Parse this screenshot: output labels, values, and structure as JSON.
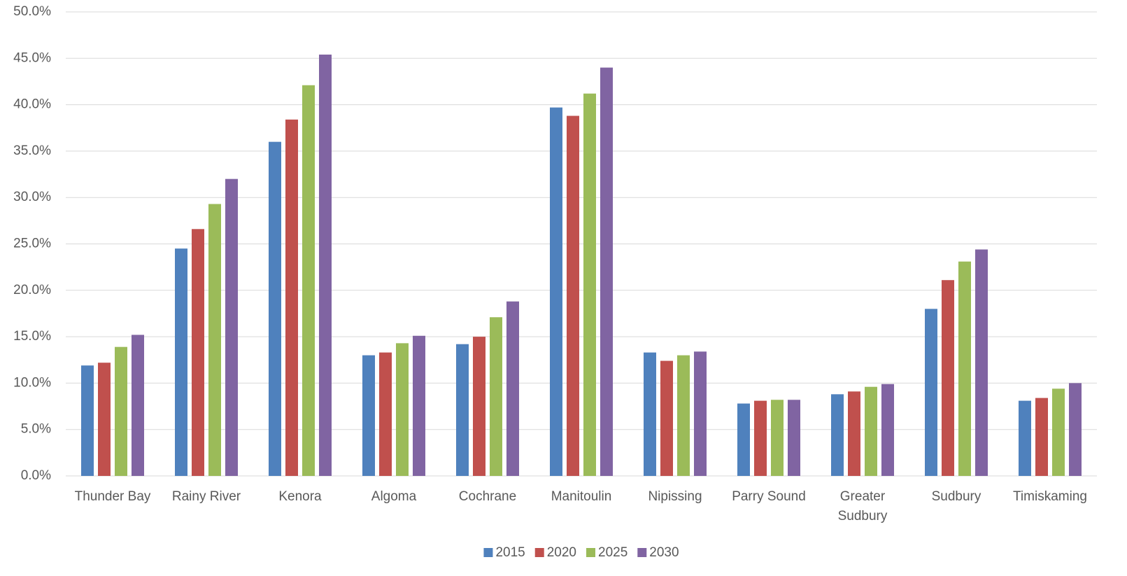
{
  "chart_data": {
    "type": "bar",
    "categories": [
      "Thunder Bay",
      "Rainy River",
      "Kenora",
      "Algoma",
      "Cochrane",
      "Manitoulin",
      "Nipissing",
      "Parry Sound",
      "Greater Sudbury",
      "Sudbury",
      "Timiskaming"
    ],
    "series": [
      {
        "name": "2015",
        "color": "#4f81bd",
        "values": [
          11.9,
          24.5,
          36.0,
          13.0,
          14.2,
          39.7,
          13.3,
          7.8,
          8.8,
          18.0,
          8.1
        ]
      },
      {
        "name": "2020",
        "color": "#c0504d",
        "values": [
          12.2,
          26.6,
          38.4,
          13.3,
          15.0,
          38.8,
          12.4,
          8.1,
          9.1,
          21.1,
          8.4
        ]
      },
      {
        "name": "2025",
        "color": "#9bbb59",
        "values": [
          13.9,
          29.3,
          42.1,
          14.3,
          17.1,
          41.2,
          13.0,
          8.2,
          9.6,
          23.1,
          9.4
        ]
      },
      {
        "name": "2030",
        "color": "#8064a2",
        "values": [
          15.2,
          32.0,
          45.4,
          15.1,
          18.8,
          44.0,
          13.4,
          8.2,
          9.9,
          24.4,
          10.0
        ]
      }
    ],
    "ylim": [
      0,
      50
    ],
    "yticks": [
      {
        "value": 0,
        "label": "0.0%"
      },
      {
        "value": 5,
        "label": "5.0%"
      },
      {
        "value": 10,
        "label": "10.0%"
      },
      {
        "value": 15,
        "label": "15.0%"
      },
      {
        "value": 20,
        "label": "20.0%"
      },
      {
        "value": 25,
        "label": "25.0%"
      },
      {
        "value": 30,
        "label": "30.0%"
      },
      {
        "value": 35,
        "label": "35.0%"
      },
      {
        "value": 40,
        "label": "40.0%"
      },
      {
        "value": 45,
        "label": "45.0%"
      },
      {
        "value": 50,
        "label": "50.0%"
      }
    ],
    "grid": true,
    "legend": "bottom"
  }
}
